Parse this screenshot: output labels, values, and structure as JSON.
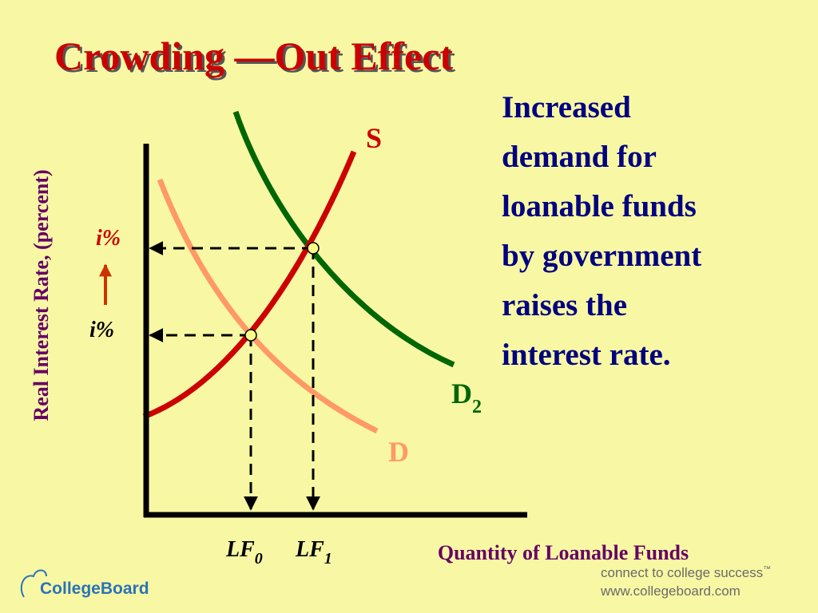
{
  "title": "Crowding —Out Effect",
  "annotation": {
    "lines": [
      "Increased",
      "demand for",
      "loanable funds",
      "by government",
      "raises the",
      "interest rate."
    ]
  },
  "graph": {
    "y_axis_label": "Real Interest Rate, (percent)",
    "x_axis_label": "Quantity of Loanable Funds",
    "curves": {
      "supply": "S",
      "demand": "D",
      "demand_new": {
        "label": "D",
        "subscript": "2"
      }
    },
    "rates": {
      "new": "i%",
      "old": "i%"
    },
    "quantities": [
      {
        "label": "LF",
        "subscript": "0"
      },
      {
        "label": "LF",
        "subscript": "1"
      }
    ]
  },
  "footer": {
    "logo": "CollegeBoard",
    "tagline": "connect to college success",
    "trademark": "™",
    "url": "www.collegeboard.com"
  }
}
